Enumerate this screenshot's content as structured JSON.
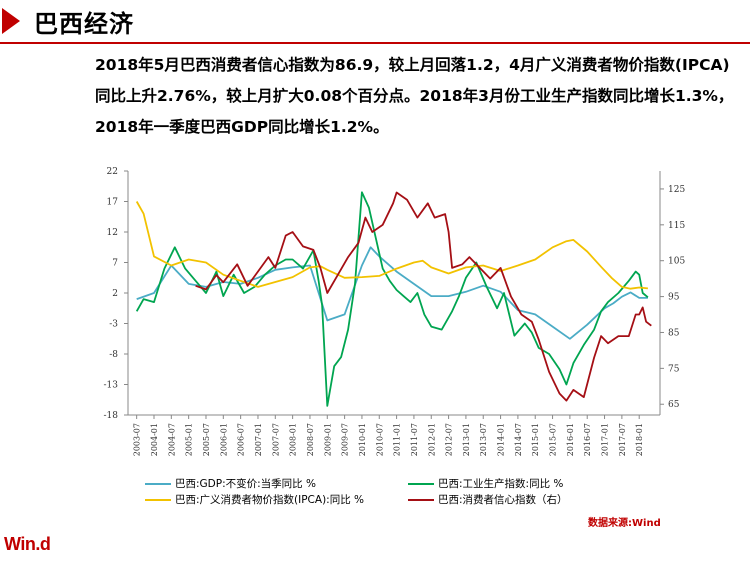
{
  "header": {
    "title": "巴西经济"
  },
  "summary": "2018年5月巴西消费者信心指数为86.9，较上月回落1.2，4月广义消费者物价指数(IPCA)同比上升2.76%，较上月扩大0.08个百分点。2018年3月份工业生产指数同比增长1.3%，2018年一季度巴西GDP同比增长1.2%。",
  "source_label": "数据来源:Wind",
  "logo_text": "Win.d",
  "colors": {
    "accent": "#c00000",
    "gdp": "#4bacc6",
    "industry": "#00a550",
    "ipca": "#f2c200",
    "confidence": "#a50f15"
  },
  "chart_data": {
    "type": "line",
    "x_ticks": [
      "2003-07",
      "2004-01",
      "2004-07",
      "2005-01",
      "2005-07",
      "2006-01",
      "2006-07",
      "2007-01",
      "2007-07",
      "2008-01",
      "2008-07",
      "2009-01",
      "2009-07",
      "2010-01",
      "2010-07",
      "2011-01",
      "2011-07",
      "2012-01",
      "2012-07",
      "2013-01",
      "2013-07",
      "2014-01",
      "2014-07",
      "2015-01",
      "2015-07",
      "2016-01",
      "2016-07",
      "2017-01",
      "2017-07",
      "2018-01"
    ],
    "y_left": {
      "ticks": [
        22,
        17,
        12,
        7,
        2,
        -3,
        -8,
        -13,
        -18
      ],
      "range": [
        -18,
        22
      ]
    },
    "y_right": {
      "ticks": [
        125,
        115,
        105,
        95,
        85,
        75,
        65
      ],
      "range": [
        62,
        130
      ]
    },
    "series": [
      {
        "name": "巴西:GDP:不变价:当季同比 %",
        "axis": "left",
        "color": "#4bacc6",
        "values": [
          [
            2003.5,
            1.0
          ],
          [
            2004.0,
            2.0
          ],
          [
            2004.5,
            6.5
          ],
          [
            2005.0,
            3.5
          ],
          [
            2005.5,
            3.0
          ],
          [
            2006.0,
            3.8
          ],
          [
            2006.5,
            3.5
          ],
          [
            2007.0,
            4.5
          ],
          [
            2007.5,
            5.8
          ],
          [
            2008.0,
            6.2
          ],
          [
            2008.5,
            6.5
          ],
          [
            2009.0,
            -2.5
          ],
          [
            2009.5,
            -1.5
          ],
          [
            2010.0,
            6.5
          ],
          [
            2010.25,
            9.5
          ],
          [
            2010.5,
            8.0
          ],
          [
            2011.0,
            5.5
          ],
          [
            2011.5,
            3.5
          ],
          [
            2012.0,
            1.5
          ],
          [
            2012.5,
            1.5
          ],
          [
            2013.0,
            2.2
          ],
          [
            2013.5,
            3.2
          ],
          [
            2014.0,
            2.2
          ],
          [
            2014.5,
            -0.8
          ],
          [
            2015.0,
            -1.5
          ],
          [
            2015.5,
            -3.5
          ],
          [
            2016.0,
            -5.5
          ],
          [
            2016.5,
            -3.2
          ],
          [
            2017.0,
            -0.5
          ],
          [
            2017.25,
            0.3
          ],
          [
            2017.5,
            1.4
          ],
          [
            2017.75,
            2.1
          ],
          [
            2018.0,
            1.2
          ],
          [
            2018.25,
            1.2
          ]
        ]
      },
      {
        "name": "巴西:工业生产指数:同比 %",
        "axis": "left",
        "color": "#00a550",
        "values": [
          [
            2003.5,
            -1.0
          ],
          [
            2003.7,
            1.0
          ],
          [
            2004.0,
            0.5
          ],
          [
            2004.3,
            6.0
          ],
          [
            2004.6,
            9.5
          ],
          [
            2004.9,
            6.0
          ],
          [
            2005.2,
            4.0
          ],
          [
            2005.5,
            2.0
          ],
          [
            2005.8,
            5.5
          ],
          [
            2006.0,
            1.5
          ],
          [
            2006.3,
            5.0
          ],
          [
            2006.6,
            2.0
          ],
          [
            2006.9,
            3.0
          ],
          [
            2007.2,
            5.0
          ],
          [
            2007.5,
            6.5
          ],
          [
            2007.8,
            7.5
          ],
          [
            2008.0,
            7.5
          ],
          [
            2008.3,
            6.0
          ],
          [
            2008.6,
            9.0
          ],
          [
            2008.75,
            4.0
          ],
          [
            2008.85,
            0.0
          ],
          [
            2009.0,
            -16.5
          ],
          [
            2009.2,
            -10.0
          ],
          [
            2009.4,
            -8.5
          ],
          [
            2009.6,
            -4.0
          ],
          [
            2009.8,
            3.5
          ],
          [
            2010.0,
            18.5
          ],
          [
            2010.2,
            16.0
          ],
          [
            2010.4,
            11.0
          ],
          [
            2010.6,
            6.0
          ],
          [
            2010.8,
            4.0
          ],
          [
            2011.0,
            2.5
          ],
          [
            2011.2,
            1.5
          ],
          [
            2011.4,
            0.5
          ],
          [
            2011.6,
            2.0
          ],
          [
            2011.8,
            -1.5
          ],
          [
            2012.0,
            -3.5
          ],
          [
            2012.3,
            -4.0
          ],
          [
            2012.6,
            -1.0
          ],
          [
            2012.8,
            1.5
          ],
          [
            2013.0,
            4.5
          ],
          [
            2013.3,
            7.0
          ],
          [
            2013.6,
            3.0
          ],
          [
            2013.9,
            -0.5
          ],
          [
            2014.1,
            2.0
          ],
          [
            2014.4,
            -5.0
          ],
          [
            2014.7,
            -3.0
          ],
          [
            2014.9,
            -4.5
          ],
          [
            2015.1,
            -7.0
          ],
          [
            2015.4,
            -8.0
          ],
          [
            2015.7,
            -10.5
          ],
          [
            2015.9,
            -13.0
          ],
          [
            2016.1,
            -9.5
          ],
          [
            2016.4,
            -6.5
          ],
          [
            2016.7,
            -4.0
          ],
          [
            2016.9,
            -1.0
          ],
          [
            2017.1,
            0.5
          ],
          [
            2017.4,
            2.0
          ],
          [
            2017.7,
            4.0
          ],
          [
            2017.9,
            5.5
          ],
          [
            2018.0,
            5.0
          ],
          [
            2018.1,
            2.0
          ],
          [
            2018.25,
            1.3
          ]
        ]
      },
      {
        "name": "巴西:广义消费者物价指数(IPCA):同比 %",
        "axis": "left",
        "color": "#f2c200",
        "values": [
          [
            2003.5,
            17.0
          ],
          [
            2003.7,
            15.0
          ],
          [
            2004.0,
            8.0
          ],
          [
            2004.5,
            6.5
          ],
          [
            2005.0,
            7.5
          ],
          [
            2005.5,
            7.0
          ],
          [
            2006.0,
            5.0
          ],
          [
            2006.5,
            4.0
          ],
          [
            2007.0,
            3.0
          ],
          [
            2007.5,
            3.8
          ],
          [
            2008.0,
            4.6
          ],
          [
            2008.5,
            6.2
          ],
          [
            2008.8,
            6.4
          ],
          [
            2009.0,
            5.8
          ],
          [
            2009.5,
            4.5
          ],
          [
            2010.0,
            4.6
          ],
          [
            2010.5,
            4.8
          ],
          [
            2011.0,
            6.0
          ],
          [
            2011.5,
            7.0
          ],
          [
            2011.75,
            7.3
          ],
          [
            2012.0,
            6.2
          ],
          [
            2012.5,
            5.2
          ],
          [
            2013.0,
            6.2
          ],
          [
            2013.5,
            6.5
          ],
          [
            2014.0,
            5.6
          ],
          [
            2014.5,
            6.5
          ],
          [
            2015.0,
            7.5
          ],
          [
            2015.5,
            9.5
          ],
          [
            2015.9,
            10.5
          ],
          [
            2016.1,
            10.7
          ],
          [
            2016.5,
            8.8
          ],
          [
            2016.9,
            6.3
          ],
          [
            2017.2,
            4.5
          ],
          [
            2017.5,
            3.0
          ],
          [
            2017.75,
            2.7
          ],
          [
            2018.0,
            2.9
          ],
          [
            2018.25,
            2.76
          ]
        ]
      },
      {
        "name": "巴西:消费者信心指数（右）",
        "axis": "right",
        "color": "#a50f15",
        "values": [
          [
            2005.2,
            98.0
          ],
          [
            2005.5,
            97.0
          ],
          [
            2005.8,
            101.0
          ],
          [
            2006.0,
            99.0
          ],
          [
            2006.4,
            104.0
          ],
          [
            2006.7,
            98.0
          ],
          [
            2007.0,
            102.0
          ],
          [
            2007.3,
            106.0
          ],
          [
            2007.5,
            103.0
          ],
          [
            2007.8,
            112.0
          ],
          [
            2008.0,
            113.0
          ],
          [
            2008.3,
            109.0
          ],
          [
            2008.6,
            108.0
          ],
          [
            2008.8,
            103.0
          ],
          [
            2009.0,
            96.0
          ],
          [
            2009.3,
            101.0
          ],
          [
            2009.6,
            106.0
          ],
          [
            2009.9,
            110.0
          ],
          [
            2010.1,
            117.0
          ],
          [
            2010.3,
            113.0
          ],
          [
            2010.6,
            115.0
          ],
          [
            2010.9,
            121.0
          ],
          [
            2011.0,
            124.0
          ],
          [
            2011.3,
            122.0
          ],
          [
            2011.6,
            117.0
          ],
          [
            2011.9,
            121.0
          ],
          [
            2012.1,
            117.0
          ],
          [
            2012.4,
            118.0
          ],
          [
            2012.5,
            113.0
          ],
          [
            2012.6,
            103.0
          ],
          [
            2012.9,
            104.0
          ],
          [
            2013.1,
            106.0
          ],
          [
            2013.4,
            103.0
          ],
          [
            2013.7,
            100.0
          ],
          [
            2014.0,
            103.0
          ],
          [
            2014.3,
            95.0
          ],
          [
            2014.6,
            90.0
          ],
          [
            2014.9,
            88.0
          ],
          [
            2015.1,
            83.0
          ],
          [
            2015.4,
            74.0
          ],
          [
            2015.7,
            68.0
          ],
          [
            2015.9,
            66.0
          ],
          [
            2016.1,
            69.0
          ],
          [
            2016.4,
            67.0
          ],
          [
            2016.7,
            78.0
          ],
          [
            2016.9,
            84.0
          ],
          [
            2017.1,
            82.0
          ],
          [
            2017.4,
            84.0
          ],
          [
            2017.7,
            84.0
          ],
          [
            2017.9,
            90.0
          ],
          [
            2018.0,
            90.0
          ],
          [
            2018.1,
            92.0
          ],
          [
            2018.2,
            88.0
          ],
          [
            2018.35,
            86.9
          ]
        ]
      }
    ],
    "legend": [
      {
        "label": "巴西:GDP:不变价:当季同比 %",
        "color": "#4bacc6"
      },
      {
        "label": "巴西:工业生产指数:同比 %",
        "color": "#00a550"
      },
      {
        "label": "巴西:广义消费者物价指数(IPCA):同比 %",
        "color": "#f2c200"
      },
      {
        "label": "巴西:消费者信心指数（右）",
        "color": "#a50f15"
      }
    ],
    "grid": false
  }
}
